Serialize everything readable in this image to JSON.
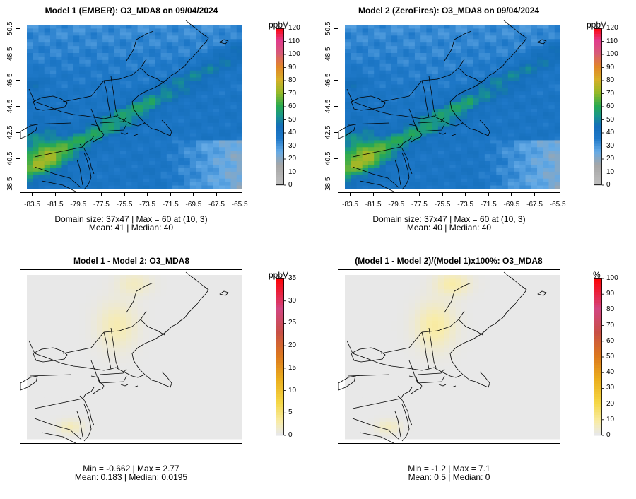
{
  "chart_data": [
    {
      "type": "heatmap",
      "title": "Model 1 (EMBER): O3_MDA8 on 09/04/2024",
      "x_ticks": [
        "-83.5",
        "-81.5",
        "-79.5",
        "-77.5",
        "-75.5",
        "-73.5",
        "-71.5",
        "-69.5",
        "-67.5",
        "-65.5"
      ],
      "y_ticks": [
        "38.5",
        "40.5",
        "42.5",
        "44.5",
        "46.5",
        "48.5",
        "50.5"
      ],
      "xlim": [
        -84.0,
        -65.3
      ],
      "ylim": [
        38.2,
        50.8
      ],
      "colorbar": {
        "unit": "ppbV",
        "ticks": [
          "0",
          "10",
          "20",
          "30",
          "40",
          "50",
          "60",
          "70",
          "80",
          "90",
          "100",
          "110",
          "120"
        ],
        "range": [
          0,
          120
        ]
      },
      "stats_line1": "Domain size: 37x47 | Max = 60 at (10, 3)",
      "stats_line2": "Mean: 41 |  Median: 40",
      "field": "ozone_mda8"
    },
    {
      "type": "heatmap",
      "title": "Model 2 (ZeroFires): O3_MDA8 on 09/04/2024",
      "x_ticks": [
        "-83.5",
        "-81.5",
        "-79.5",
        "-77.5",
        "-75.5",
        "-73.5",
        "-71.5",
        "-69.5",
        "-67.5",
        "-65.5"
      ],
      "y_ticks": [
        "38.5",
        "40.5",
        "42.5",
        "44.5",
        "46.5",
        "48.5",
        "50.5"
      ],
      "xlim": [
        -84.0,
        -65.3
      ],
      "ylim": [
        38.2,
        50.8
      ],
      "colorbar": {
        "unit": "ppbV",
        "ticks": [
          "0",
          "10",
          "20",
          "30",
          "40",
          "50",
          "60",
          "70",
          "80",
          "90",
          "100",
          "110",
          "120"
        ],
        "range": [
          0,
          120
        ]
      },
      "stats_line1": "Domain size: 37x47 | Max = 60 at (10, 3)",
      "stats_line2": "Mean: 40 |  Median: 40",
      "field": "ozone_mda8"
    },
    {
      "type": "heatmap",
      "title": "Model 1 - Model 2: O3_MDA8",
      "colorbar": {
        "unit": "ppbV",
        "ticks": [
          "0",
          "5",
          "10",
          "15",
          "20",
          "25",
          "30",
          "35"
        ],
        "range": [
          0,
          35
        ]
      },
      "stats_line1": "Min = -0.662 | Max = 2.77",
      "stats_line2": "Mean: 0.183 |  Median: 0.0195",
      "field": "difference"
    },
    {
      "type": "heatmap",
      "title": "(Model 1 - Model 2)/(Model 1)x100%: O3_MDA8",
      "colorbar": {
        "unit": "%",
        "ticks": [
          "0",
          "10",
          "20",
          "30",
          "40",
          "50",
          "60",
          "70",
          "80",
          "90",
          "100"
        ],
        "range": [
          0,
          100
        ]
      },
      "stats_line1": "Min = -1.2 | Max = 7.1",
      "stats_line2": "Mean: 0.5 |  Median: 0",
      "field": "percent_difference"
    }
  ]
}
